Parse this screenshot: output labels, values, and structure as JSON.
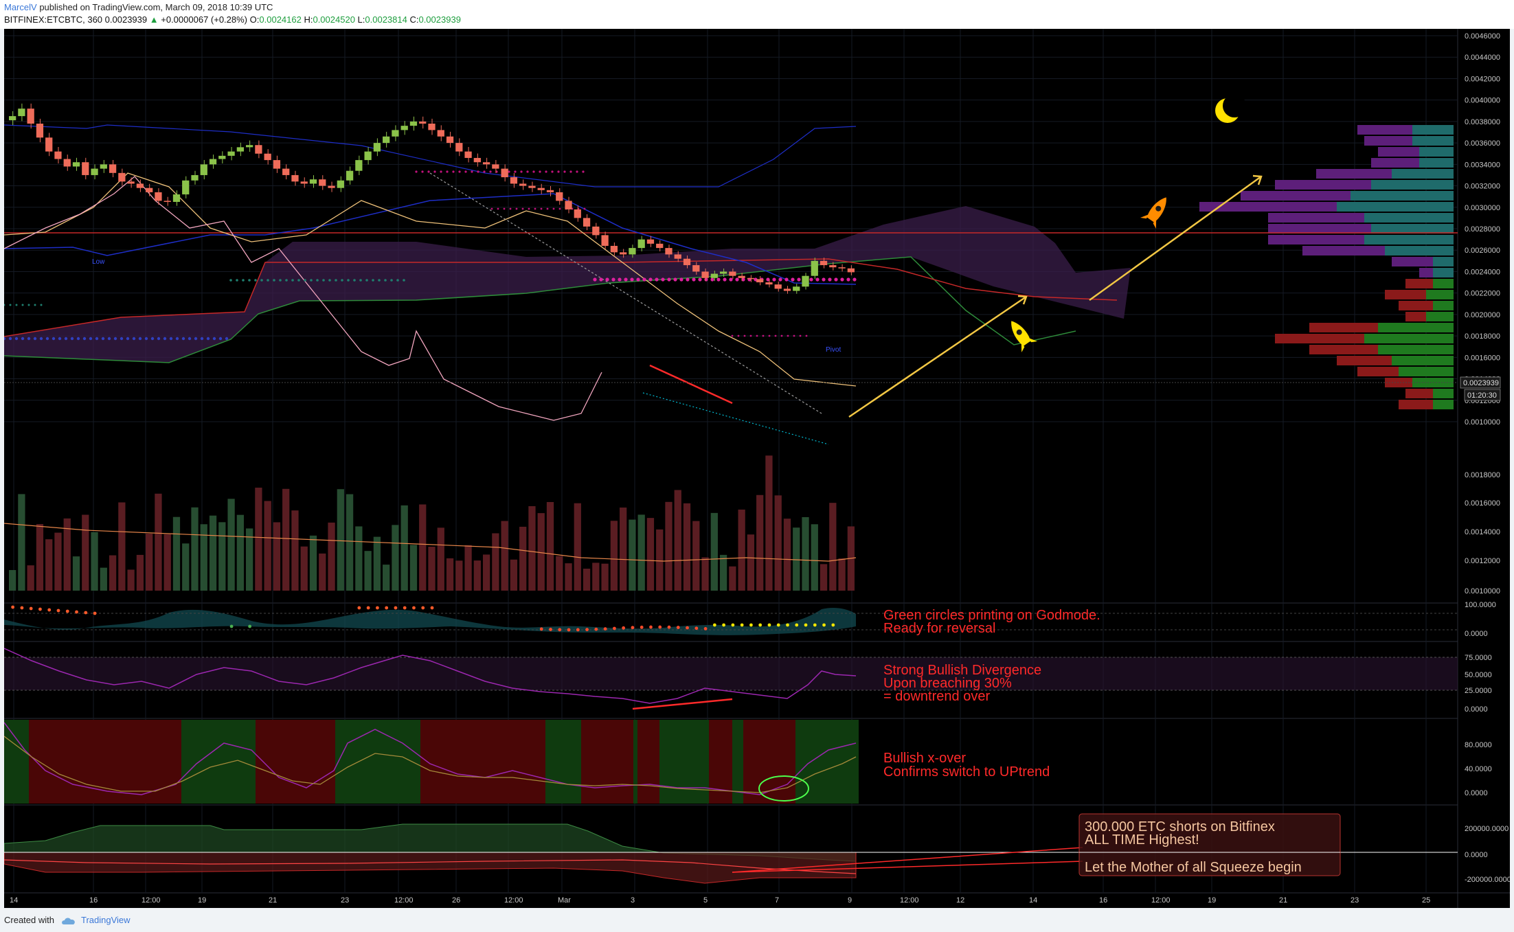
{
  "header": {
    "author": "MarcelV",
    "published_text": "published on TradingView.com, March 09, 2018 10:39 UTC",
    "symbol": "BITFINEX:ETCBTC, 360",
    "last": "0.0023939",
    "up_arrow": "▲",
    "change": "+0.0000067 (+0.28%)",
    "o_label": "O:",
    "o_value": "0.0024162",
    "h_label": "H:",
    "h_value": "0.0024520",
    "l_label": "L:",
    "l_value": "0.0023814",
    "c_label": "C:",
    "c_value": "0.0023939"
  },
  "footer": {
    "created_with": "Created with",
    "brand": "TradingView"
  },
  "chart_data": {
    "type": "candlestick",
    "symbol": "BITFINEX:ETCBTC",
    "interval": "360",
    "x_ticks": [
      "14",
      "16",
      "12:00",
      "19",
      "21",
      "23",
      "12:00",
      "26",
      "12:00",
      "Mar",
      "3",
      "5",
      "7",
      "9",
      "12:00",
      "12",
      "14",
      "16",
      "12:00",
      "19",
      "21",
      "23",
      "25"
    ],
    "price_ticks": [
      "0.0046000",
      "0.0044000",
      "0.0042000",
      "0.0040000",
      "0.0038000",
      "0.0036000",
      "0.0034000",
      "0.0032000",
      "0.0030000",
      "0.0028000",
      "0.0026000",
      "0.0024000",
      "0.0022000",
      "0.0020000",
      "0.0018000",
      "0.0016000",
      "0.0014000",
      "0.0012000",
      "0.0010000"
    ],
    "ylim": [
      0.00095,
      0.0047
    ],
    "last_price_label": "0.0023939",
    "countdown_label": "01:20:30",
    "close": [
      0.00385,
      0.00392,
      0.00378,
      0.00365,
      0.00352,
      0.00345,
      0.00338,
      0.00342,
      0.0033,
      0.00336,
      0.0034,
      0.00332,
      0.00324,
      0.00322,
      0.00318,
      0.00314,
      0.00306,
      0.00305,
      0.00312,
      0.00325,
      0.0033,
      0.0034,
      0.00345,
      0.00348,
      0.00352,
      0.00356,
      0.00358,
      0.0035,
      0.00344,
      0.00336,
      0.0033,
      0.00324,
      0.00322,
      0.00326,
      0.0032,
      0.00318,
      0.00325,
      0.00334,
      0.00344,
      0.00352,
      0.0036,
      0.00366,
      0.00372,
      0.00376,
      0.0038,
      0.00378,
      0.00372,
      0.00366,
      0.0036,
      0.00352,
      0.00346,
      0.00342,
      0.0034,
      0.00336,
      0.00328,
      0.00322,
      0.0032,
      0.00318,
      0.00316,
      0.00314,
      0.00306,
      0.00298,
      0.0029,
      0.00282,
      0.00274,
      0.00264,
      0.00258,
      0.00256,
      0.00262,
      0.0027,
      0.00266,
      0.00262,
      0.00256,
      0.00252,
      0.00246,
      0.0024,
      0.00234,
      0.00238,
      0.0024,
      0.00236,
      0.00234,
      0.00233,
      0.0023,
      0.00228,
      0.00224,
      0.00222,
      0.00226,
      0.00236,
      0.0025,
      0.00246,
      0.00244,
      0.00243,
      0.0023939
    ],
    "volume_axis_ticks": [
      "0.0010000",
      "0.0012000",
      "0.0014000",
      "0.0016000",
      "0.0018000"
    ],
    "godmode_ticks": [
      "100.0000",
      "0.0000"
    ],
    "rsi_ticks": [
      "75.0000",
      "50.0000",
      "25.0000",
      "0.0000"
    ],
    "stoch_ticks": [
      "80.0000",
      "40.0000",
      "0.0000"
    ],
    "shorts_ticks": [
      "200000.0000",
      "0.0000",
      "-200000.0000"
    ]
  },
  "annotations": {
    "godmode_1": "Green circles printing on Godmode.",
    "godmode_2": "Ready for reversal",
    "rsi_1": "Strong Bullish Divergence",
    "rsi_2": "Upon breaching 30%",
    "rsi_3": " = downtrend over",
    "stoch_1": "Bullish x-over",
    "stoch_2": "Confirms switch to UPtrend",
    "shorts_1": "300.000 ETC shorts on Bitfinex",
    "shorts_2": "ALL TIME Highest!",
    "shorts_3": "Let the Mother of all Squeeze begin",
    "pivot_label": "Pivot",
    "low_label": "Low"
  },
  "colors": {
    "bull": "#8bc34a",
    "bear": "#ef6c5a",
    "cloud": "#5b2a6b",
    "text_red": "#ff2a2a",
    "moon": "#ffe100",
    "rocket": "#ff8c00"
  }
}
